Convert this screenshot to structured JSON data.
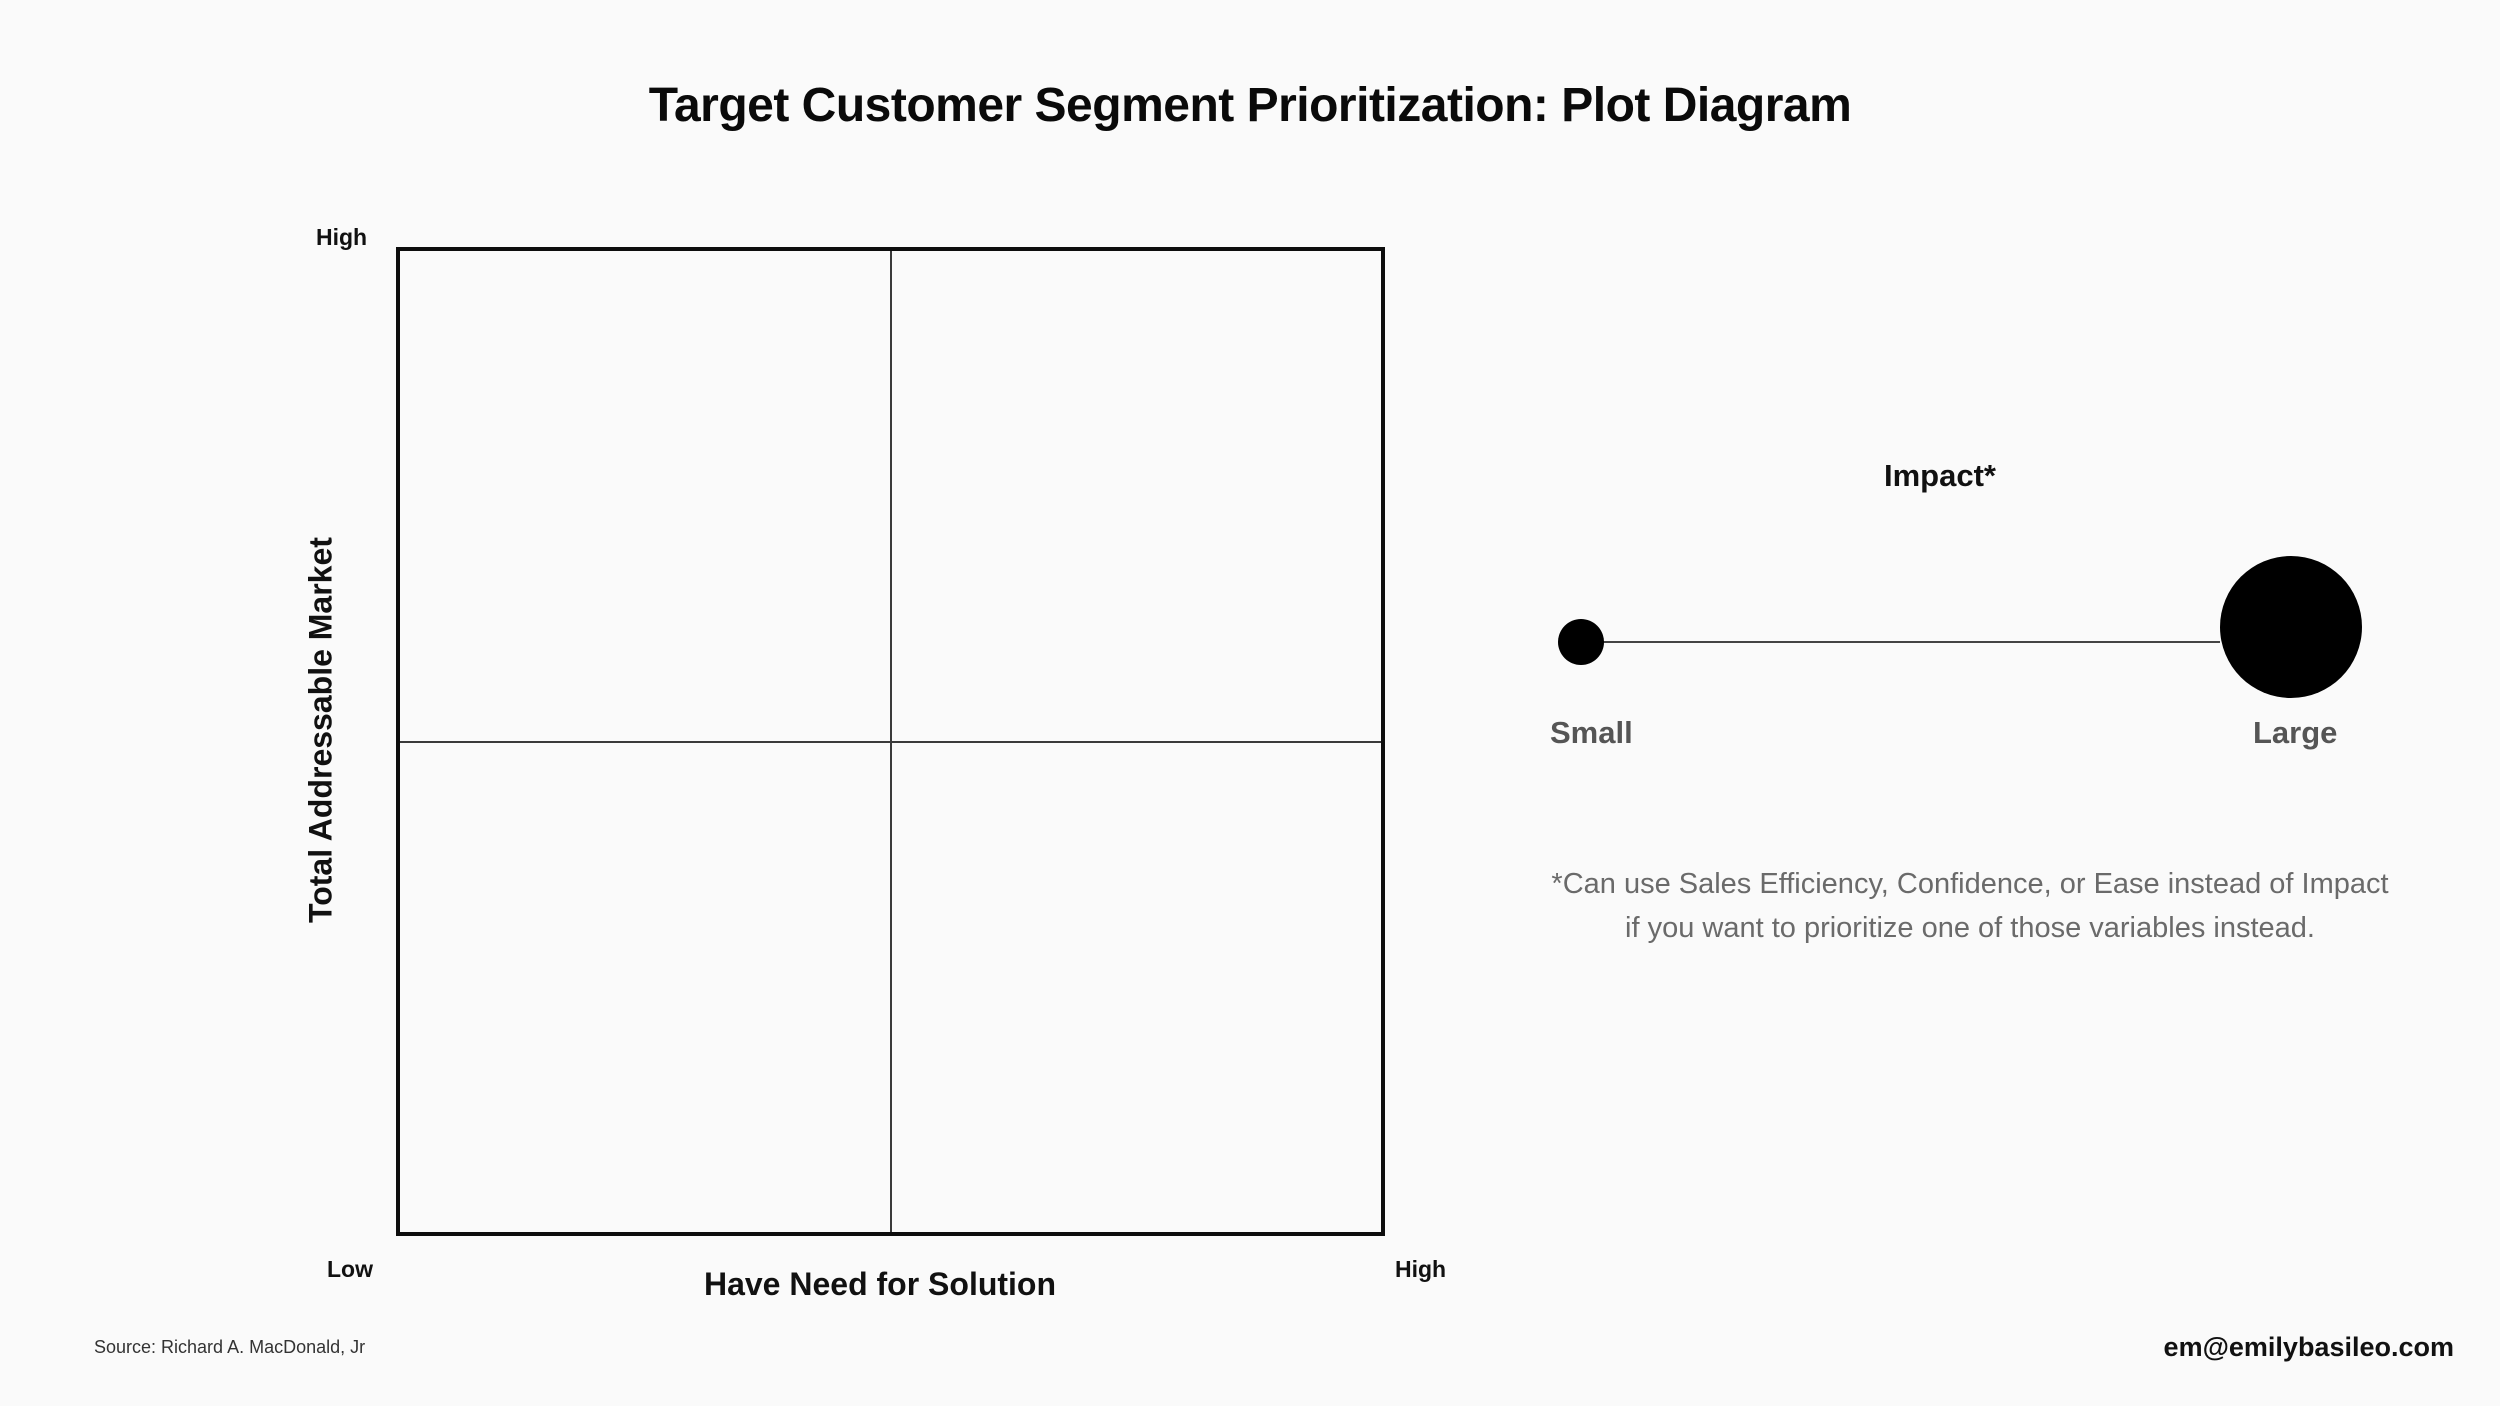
{
  "title": "Target Customer Segment Prioritization: Plot Diagram",
  "plot": {
    "y_axis_label": "Total Addressable Market",
    "x_axis_label": "Have Need for Solution",
    "y_high": "High",
    "origin_low": "Low",
    "x_high": "High"
  },
  "legend": {
    "title": "Impact*",
    "small_label": "Small",
    "large_label": "Large"
  },
  "note": "*Can use Sales Efficiency, Confidence, or Ease instead of Impact\nif  you want to prioritize one of those variables instead.",
  "footer": {
    "source": "Source: Richard A. MacDonald, Jr",
    "contact": "em@emilybasileo.com"
  }
}
